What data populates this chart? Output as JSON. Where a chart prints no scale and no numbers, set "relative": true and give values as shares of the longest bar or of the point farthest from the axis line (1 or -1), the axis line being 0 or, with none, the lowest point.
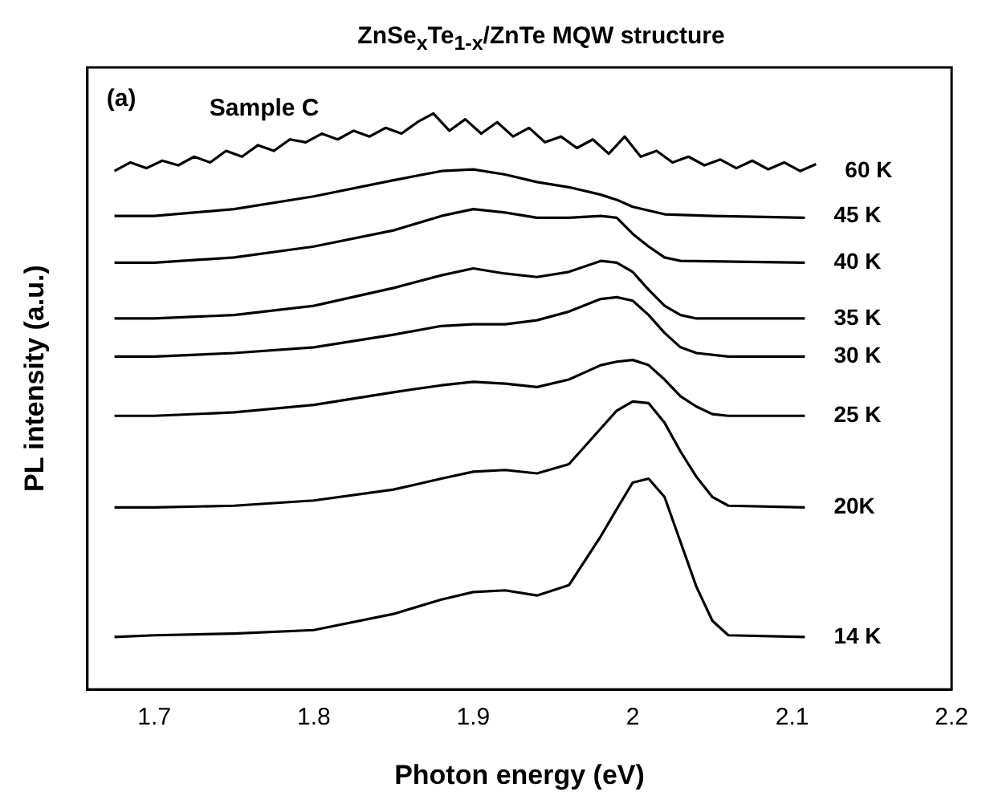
{
  "chart_data": {
    "type": "line",
    "title": "ZnSe$_{x}$Te$_{1-x}$/ZnTe MQW structure",
    "xlabel": "Photon energy (eV)",
    "ylabel": "PL intensity (a.u.)",
    "annotations": [
      "(a)",
      "Sample C"
    ],
    "relative": true,
    "legend": false,
    "grid": false,
    "marker": "none",
    "line_style": "solid",
    "xlim": [
      1.658,
      2.2
    ],
    "xticks": [
      1.7,
      1.8,
      1.9,
      2.0,
      2.1,
      2.2
    ],
    "series": [
      {
        "name": "60 K",
        "color": "#000000",
        "x": [
          1.675,
          1.685,
          1.695,
          1.705,
          1.715,
          1.725,
          1.735,
          1.745,
          1.755,
          1.765,
          1.775,
          1.785,
          1.795,
          1.805,
          1.815,
          1.825,
          1.835,
          1.845,
          1.855,
          1.865,
          1.875,
          1.885,
          1.895,
          1.905,
          1.915,
          1.925,
          1.935,
          1.945,
          1.955,
          1.965,
          1.975,
          1.985,
          1.995,
          2.005,
          2.015,
          2.025,
          2.035,
          2.045,
          2.055,
          2.065,
          2.075,
          2.085,
          2.095,
          2.105,
          2.115
        ],
        "values": [
          0.9,
          0.915,
          0.905,
          0.918,
          0.91,
          0.925,
          0.915,
          0.935,
          0.925,
          0.945,
          0.935,
          0.955,
          0.95,
          0.965,
          0.955,
          0.97,
          0.96,
          0.975,
          0.965,
          0.985,
          1.0,
          0.97,
          0.99,
          0.965,
          0.985,
          0.96,
          0.975,
          0.95,
          0.96,
          0.94,
          0.955,
          0.93,
          0.96,
          0.925,
          0.935,
          0.915,
          0.925,
          0.91,
          0.92,
          0.905,
          0.918,
          0.903,
          0.915,
          0.9,
          0.912
        ]
      },
      {
        "name": "45 K",
        "color": "#000000",
        "x": [
          1.675,
          1.7,
          1.75,
          1.8,
          1.85,
          1.88,
          1.9,
          1.92,
          1.94,
          1.96,
          1.98,
          1.99,
          2.0,
          2.02,
          2.05,
          2.108
        ],
        "values": [
          0.822,
          0.822,
          0.834,
          0.856,
          0.884,
          0.9,
          0.903,
          0.894,
          0.881,
          0.872,
          0.859,
          0.85,
          0.838,
          0.825,
          0.822,
          0.819
        ]
      },
      {
        "name": "40 K",
        "color": "#000000",
        "x": [
          1.675,
          1.7,
          1.75,
          1.8,
          1.85,
          1.88,
          1.9,
          1.92,
          1.94,
          1.96,
          1.98,
          1.99,
          2.0,
          2.01,
          2.02,
          2.03,
          2.108
        ],
        "values": [
          0.741,
          0.741,
          0.75,
          0.769,
          0.797,
          0.822,
          0.834,
          0.828,
          0.819,
          0.819,
          0.822,
          0.819,
          0.791,
          0.769,
          0.75,
          0.744,
          0.741
        ]
      },
      {
        "name": "35 K",
        "color": "#000000",
        "x": [
          1.675,
          1.7,
          1.75,
          1.8,
          1.85,
          1.88,
          1.9,
          1.92,
          1.94,
          1.96,
          1.98,
          1.99,
          2.0,
          2.01,
          2.02,
          2.03,
          2.04,
          2.108
        ],
        "values": [
          0.644,
          0.644,
          0.65,
          0.666,
          0.697,
          0.719,
          0.731,
          0.722,
          0.716,
          0.725,
          0.744,
          0.741,
          0.725,
          0.694,
          0.666,
          0.65,
          0.644,
          0.644
        ]
      },
      {
        "name": "30 K",
        "color": "#000000",
        "x": [
          1.675,
          1.7,
          1.75,
          1.8,
          1.85,
          1.88,
          1.9,
          1.92,
          1.94,
          1.96,
          1.98,
          1.99,
          2.0,
          2.01,
          2.02,
          2.03,
          2.04,
          2.06,
          2.108
        ],
        "values": [
          0.578,
          0.578,
          0.584,
          0.594,
          0.616,
          0.631,
          0.634,
          0.634,
          0.641,
          0.656,
          0.678,
          0.681,
          0.675,
          0.65,
          0.619,
          0.594,
          0.584,
          0.578,
          0.578
        ]
      },
      {
        "name": "25 K",
        "color": "#000000",
        "x": [
          1.675,
          1.7,
          1.75,
          1.8,
          1.85,
          1.88,
          1.9,
          1.92,
          1.94,
          1.96,
          1.98,
          1.99,
          2.0,
          2.01,
          2.02,
          2.03,
          2.04,
          2.05,
          2.06,
          2.108
        ],
        "values": [
          0.475,
          0.475,
          0.481,
          0.494,
          0.516,
          0.528,
          0.534,
          0.531,
          0.525,
          0.538,
          0.563,
          0.569,
          0.572,
          0.563,
          0.538,
          0.509,
          0.491,
          0.478,
          0.475,
          0.475
        ]
      },
      {
        "name": "20K",
        "color": "#000000",
        "x": [
          1.675,
          1.7,
          1.75,
          1.8,
          1.85,
          1.88,
          1.9,
          1.92,
          1.94,
          1.96,
          1.98,
          1.99,
          2.0,
          2.01,
          2.02,
          2.03,
          2.04,
          2.05,
          2.06,
          2.108
        ],
        "values": [
          0.316,
          0.316,
          0.319,
          0.328,
          0.347,
          0.366,
          0.378,
          0.381,
          0.375,
          0.391,
          0.453,
          0.484,
          0.5,
          0.497,
          0.463,
          0.413,
          0.369,
          0.334,
          0.319,
          0.316
        ]
      },
      {
        "name": "14 K",
        "color": "#000000",
        "x": [
          1.675,
          1.7,
          1.75,
          1.8,
          1.85,
          1.88,
          1.9,
          1.92,
          1.94,
          1.96,
          1.98,
          1.99,
          2.0,
          2.01,
          2.02,
          2.03,
          2.04,
          2.05,
          2.06,
          2.108
        ],
        "values": [
          0.091,
          0.094,
          0.097,
          0.103,
          0.131,
          0.156,
          0.169,
          0.172,
          0.163,
          0.181,
          0.266,
          0.313,
          0.359,
          0.366,
          0.334,
          0.256,
          0.178,
          0.119,
          0.094,
          0.091
        ]
      }
    ]
  }
}
